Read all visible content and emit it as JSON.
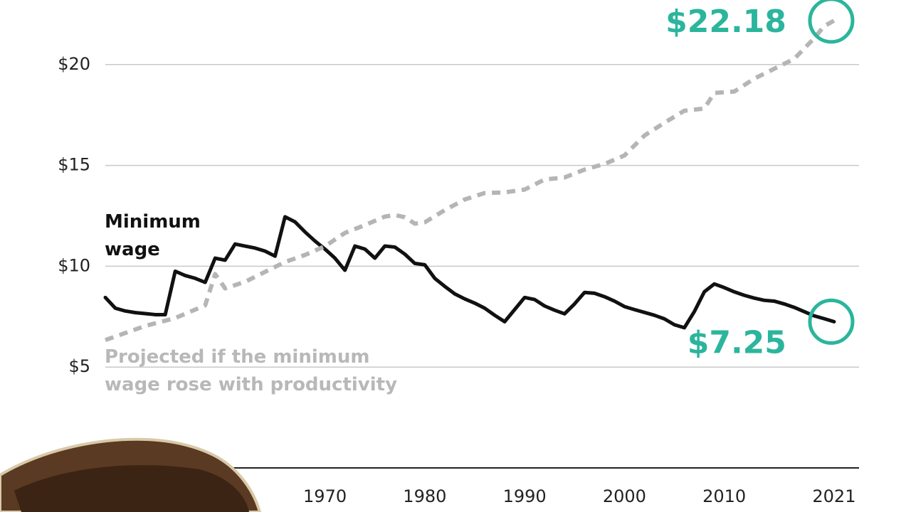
{
  "chart_data": {
    "type": "line",
    "xlim": [
      1948,
      2023.5
    ],
    "ylim": [
      0,
      23.2
    ],
    "xticks": [
      1970,
      1980,
      1990,
      2000,
      2010,
      2021
    ],
    "yticks": [
      {
        "value": 5,
        "label": "$5"
      },
      {
        "value": 10,
        "label": "$10"
      },
      {
        "value": 15,
        "label": "$15"
      },
      {
        "value": 20,
        "label": "$20"
      }
    ],
    "grid": true,
    "series": [
      {
        "name": "Minimum wage",
        "name_lines": [
          "Minimum",
          "wage"
        ],
        "color": "#111111",
        "dashed": false,
        "x": [
          1948,
          1949,
          1950,
          1951,
          1952,
          1953,
          1954,
          1955,
          1956,
          1957,
          1958,
          1959,
          1960,
          1961,
          1962,
          1963,
          1964,
          1965,
          1966,
          1967,
          1968,
          1969,
          1970,
          1971,
          1972,
          1973,
          1974,
          1975,
          1976,
          1977,
          1978,
          1979,
          1980,
          1981,
          1982,
          1983,
          1984,
          1985,
          1986,
          1987,
          1988,
          1989,
          1990,
          1991,
          1992,
          1993,
          1994,
          1995,
          1996,
          1997,
          1998,
          1999,
          2000,
          2001,
          2002,
          2003,
          2004,
          2005,
          2006,
          2007,
          2008,
          2009,
          2010,
          2011,
          2012,
          2013,
          2014,
          2015,
          2016,
          2017,
          2018,
          2019,
          2020,
          2021
        ],
        "values": [
          8.45,
          7.92,
          7.78,
          7.7,
          7.65,
          7.6,
          7.6,
          9.75,
          9.54,
          9.4,
          9.2,
          10.4,
          10.3,
          11.1,
          11.0,
          10.9,
          10.75,
          10.5,
          12.45,
          12.2,
          11.7,
          11.25,
          10.85,
          10.4,
          9.8,
          11.0,
          10.85,
          10.4,
          11.0,
          10.95,
          10.6,
          10.14,
          10.07,
          9.4,
          9.0,
          8.63,
          8.38,
          8.17,
          7.92,
          7.57,
          7.25,
          7.85,
          8.45,
          8.35,
          8.03,
          7.82,
          7.64,
          8.13,
          8.7,
          8.66,
          8.49,
          8.27,
          8.0,
          7.85,
          7.71,
          7.57,
          7.39,
          7.1,
          6.95,
          7.75,
          8.73,
          9.12,
          8.94,
          8.73,
          8.56,
          8.42,
          8.31,
          8.27,
          8.13,
          7.96,
          7.75,
          7.54,
          7.4,
          7.25
        ],
        "value_labels": [
          null,
          null,
          null,
          null,
          null,
          null,
          null,
          null,
          null,
          null,
          null,
          null,
          null,
          null,
          null,
          null,
          null,
          null,
          null,
          null,
          null,
          null,
          null,
          null,
          null,
          null,
          null,
          null,
          null,
          null,
          null,
          null,
          null,
          null,
          null,
          null,
          null,
          null,
          null,
          null,
          null,
          null,
          null,
          null,
          null,
          null,
          null,
          null,
          null,
          null,
          null,
          null,
          null,
          null,
          null,
          null,
          null,
          null,
          null,
          null,
          null,
          null,
          null,
          null,
          null,
          null,
          null,
          null,
          null,
          null,
          null,
          null,
          null,
          "$7.25"
        ]
      },
      {
        "name": "Projected if the minimum wage rose with productivity",
        "name_lines": [
          "Projected if the minimum",
          "wage rose with productivity"
        ],
        "color": "#b5b5b5",
        "dashed": true,
        "x": [
          1948,
          1952,
          1955,
          1958,
          1959,
          1960,
          1962,
          1964,
          1966,
          1968,
          1970,
          1972,
          1974,
          1976,
          1977,
          1978,
          1979,
          1980,
          1982,
          1984,
          1986,
          1988,
          1990,
          1992,
          1994,
          1996,
          1998,
          2000,
          2002,
          2004,
          2006,
          2008,
          2009,
          2011,
          2013,
          2015,
          2017,
          2019,
          2020,
          2021
        ],
        "values": [
          6.34,
          7.04,
          7.43,
          8.06,
          9.61,
          8.9,
          9.23,
          9.72,
          10.21,
          10.56,
          10.99,
          11.65,
          12.04,
          12.46,
          12.54,
          12.43,
          12.11,
          12.18,
          12.78,
          13.31,
          13.63,
          13.66,
          13.8,
          14.3,
          14.4,
          14.79,
          15.07,
          15.49,
          16.48,
          17.11,
          17.71,
          17.82,
          18.59,
          18.66,
          19.3,
          19.79,
          20.28,
          21.3,
          21.9,
          22.18
        ],
        "value_labels": [
          null,
          null,
          null,
          null,
          null,
          null,
          null,
          null,
          null,
          null,
          null,
          null,
          null,
          null,
          null,
          null,
          null,
          null,
          null,
          null,
          null,
          null,
          null,
          null,
          null,
          null,
          null,
          null,
          null,
          null,
          null,
          null,
          null,
          null,
          null,
          null,
          null,
          null,
          null,
          "$22.18"
        ]
      }
    ]
  }
}
